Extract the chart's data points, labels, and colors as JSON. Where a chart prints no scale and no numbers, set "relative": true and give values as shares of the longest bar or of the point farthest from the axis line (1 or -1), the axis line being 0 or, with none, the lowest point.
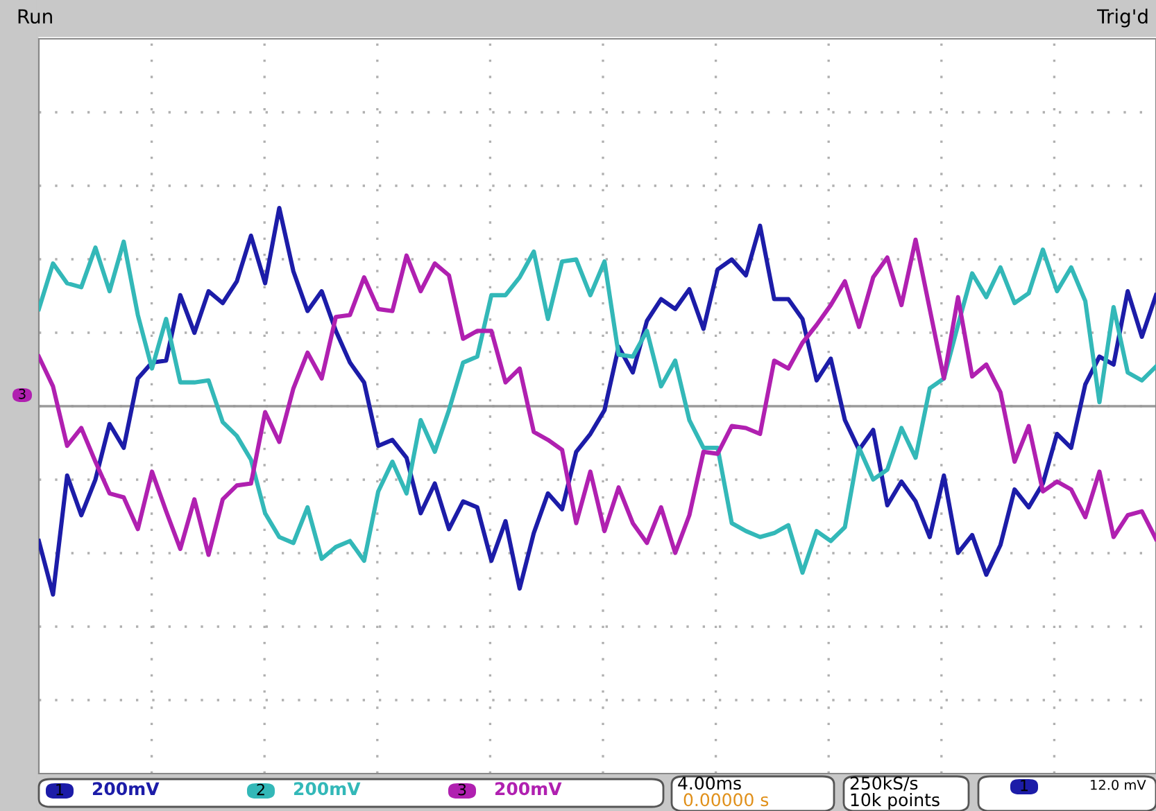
{
  "chart_data": {
    "type": "line",
    "relative": true,
    "grid": true,
    "marker": "none",
    "line_style": "solid",
    "categories": [
      null,
      null,
      null,
      null,
      null,
      null,
      null,
      null,
      null,
      null,
      null,
      null,
      null,
      null,
      null,
      null,
      null,
      null,
      null,
      null,
      null,
      null,
      null,
      null,
      null,
      null,
      null,
      null,
      null,
      null,
      null,
      null,
      null,
      null,
      null,
      null,
      null,
      null,
      null,
      null,
      null,
      null,
      null,
      null,
      null,
      null,
      null,
      null,
      null,
      null,
      null,
      null,
      null,
      null,
      null,
      null,
      null,
      null,
      null,
      null,
      null,
      null,
      null,
      null,
      null,
      null,
      null,
      null,
      null,
      null,
      null,
      null,
      null,
      null,
      null,
      null,
      null,
      null,
      null,
      null
    ],
    "annotations": [
      "Run",
      "Trig'd",
      "1",
      "200mV",
      "2",
      "200mV",
      "3",
      "200mV",
      "4.00ms",
      "0.00000 s",
      "250kS/s",
      "10k points",
      "1",
      "12.0 mV",
      "3"
    ],
    "series": [
      {
        "color": "#1c1ca8",
        "values": [
          -0.68,
          -0.95,
          -0.35,
          -0.55,
          -0.37,
          -0.09,
          -0.21,
          0.14,
          0.22,
          0.23,
          0.56,
          0.37,
          0.58,
          0.52,
          0.63,
          0.86,
          0.62,
          1.0,
          0.68,
          0.48,
          0.58,
          0.38,
          0.22,
          0.12,
          -0.2,
          -0.17,
          -0.26,
          -0.54,
          -0.39,
          -0.62,
          -0.48,
          -0.51,
          -0.78,
          -0.58,
          -0.92,
          -0.64,
          -0.44,
          -0.52,
          -0.23,
          -0.14,
          -0.02,
          0.3,
          0.17,
          0.43,
          0.54,
          0.49,
          0.59,
          0.39,
          0.69,
          0.74,
          0.66,
          0.91,
          0.54,
          0.54,
          0.44,
          0.13,
          0.24,
          -0.07,
          -0.22,
          -0.12,
          -0.5,
          -0.38,
          -0.48,
          -0.66,
          -0.35,
          -0.74,
          -0.65,
          -0.85,
          -0.7,
          -0.42,
          -0.51,
          -0.39,
          -0.14,
          -0.21,
          0.11,
          0.25,
          0.21,
          0.58,
          0.35,
          0.56
        ]
      },
      {
        "color": "#33b8b8",
        "values": [
          0.49,
          0.72,
          0.62,
          0.6,
          0.8,
          0.58,
          0.83,
          0.46,
          0.19,
          0.44,
          0.12,
          0.12,
          0.13,
          -0.08,
          -0.15,
          -0.27,
          -0.54,
          -0.66,
          -0.69,
          -0.51,
          -0.77,
          -0.71,
          -0.68,
          -0.78,
          -0.43,
          -0.28,
          -0.44,
          -0.07,
          -0.23,
          -0.02,
          0.22,
          0.25,
          0.56,
          0.56,
          0.65,
          0.78,
          0.44,
          0.73,
          0.74,
          0.56,
          0.73,
          0.26,
          0.25,
          0.38,
          0.1,
          0.23,
          -0.07,
          -0.21,
          -0.21,
          -0.59,
          -0.63,
          -0.66,
          -0.64,
          -0.6,
          -0.84,
          -0.63,
          -0.68,
          -0.61,
          -0.21,
          -0.37,
          -0.32,
          -0.11,
          -0.26,
          0.09,
          0.14,
          0.41,
          0.67,
          0.55,
          0.7,
          0.52,
          0.57,
          0.79,
          0.58,
          0.7,
          0.53,
          0.02,
          0.5,
          0.17,
          0.13,
          0.2
        ]
      },
      {
        "color": "#b020b0",
        "values": [
          0.25,
          0.1,
          -0.2,
          -0.11,
          -0.28,
          -0.44,
          -0.46,
          -0.62,
          -0.33,
          -0.53,
          -0.72,
          -0.47,
          -0.75,
          -0.47,
          -0.4,
          -0.39,
          -0.03,
          -0.18,
          0.09,
          0.27,
          0.14,
          0.45,
          0.46,
          0.65,
          0.49,
          0.48,
          0.76,
          0.58,
          0.72,
          0.66,
          0.34,
          0.38,
          0.38,
          0.12,
          0.19,
          -0.13,
          -0.17,
          -0.22,
          -0.59,
          -0.33,
          -0.63,
          -0.41,
          -0.59,
          -0.69,
          -0.51,
          -0.74,
          -0.55,
          -0.23,
          -0.24,
          -0.1,
          -0.11,
          -0.14,
          0.23,
          0.19,
          0.32,
          0.41,
          0.51,
          0.63,
          0.4,
          0.65,
          0.75,
          0.51,
          0.84,
          0.49,
          0.14,
          0.55,
          0.15,
          0.21,
          0.07,
          -0.28,
          -0.1,
          -0.43,
          -0.38,
          -0.42,
          -0.56,
          -0.33,
          -0.66,
          -0.55,
          -0.53,
          -0.67
        ]
      }
    ]
  }
}
